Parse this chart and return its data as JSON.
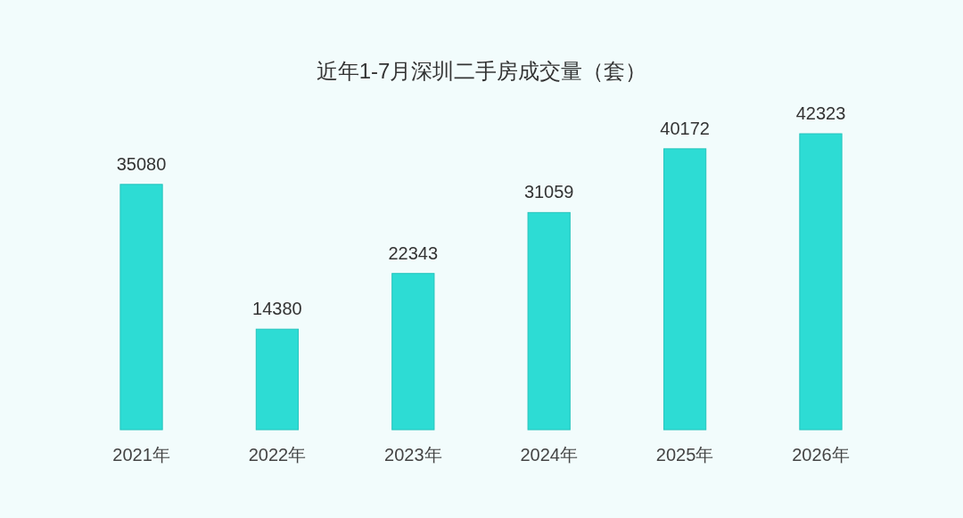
{
  "chart_data": {
    "type": "bar",
    "title": "近年1-7月深圳二手房成交量（套）",
    "categories": [
      "2021年",
      "2022年",
      "2023年",
      "2024年",
      "2025年",
      "2026年"
    ],
    "values": [
      35080,
      14380,
      22343,
      31059,
      40172,
      42323
    ],
    "color": "#2ddcd4",
    "data_labels": true
  }
}
